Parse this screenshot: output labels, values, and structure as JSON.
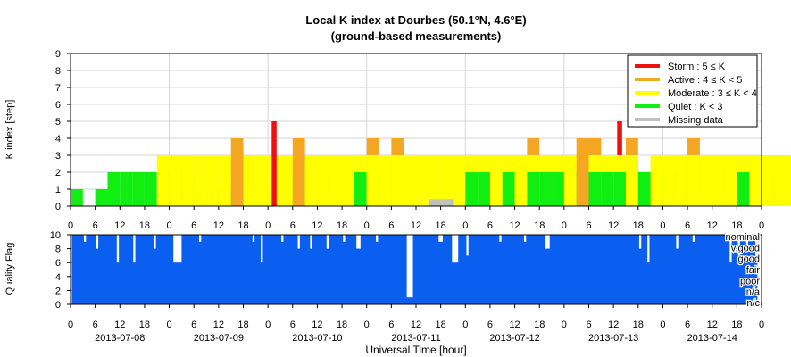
{
  "chart_data": {
    "type": "bar",
    "title": "Local K index at Dourbes (50.1°N, 4.6°E)",
    "subtitle": "(ground-based measurements)",
    "xlabel": "Universal Time [hour]",
    "x_unit": "hour",
    "days": [
      "2013-07-08",
      "2013-07-09",
      "2013-07-10",
      "2013-07-11",
      "2013-07-12",
      "2013-07-13",
      "2013-07-14"
    ],
    "k_panel": {
      "ylabel": "K index [step]",
      "ylim": [
        0,
        9
      ],
      "yticks": [
        0,
        1,
        2,
        3,
        4,
        5,
        6,
        7,
        8,
        9
      ],
      "grid": true,
      "bin_hours": 3,
      "k_values": [
        [
          1,
          0,
          1,
          2,
          2,
          2,
          2,
          3,
          2,
          2,
          1,
          1,
          0,
          1,
          0,
          1,
          1,
          2,
          2,
          2,
          2,
          3,
          3,
          3
        ],
        [
          3,
          3,
          3,
          3,
          3,
          4,
          3,
          3,
          3,
          3,
          3,
          3,
          2,
          3,
          3,
          3,
          4,
          3,
          3,
          3,
          3,
          3,
          3,
          3
        ],
        [
          5,
          3,
          4,
          3,
          3,
          3,
          3,
          2,
          3,
          3,
          4,
          3,
          3,
          3,
          3,
          3,
          3,
          3,
          3,
          3,
          3,
          4,
          3,
          3
        ],
        [
          3,
          3,
          3,
          3,
          0,
          -1,
          -1,
          0,
          3,
          3,
          3,
          3,
          3,
          3,
          3,
          3,
          3,
          3,
          4,
          3,
          5,
          4,
          1,
          2
        ],
        [
          2,
          2,
          3,
          2,
          3,
          2,
          2,
          2,
          2,
          2,
          3,
          2,
          3,
          3,
          2,
          2,
          3,
          3,
          4,
          3,
          3,
          3,
          2,
          3
        ],
        [
          3,
          4,
          2,
          1,
          2,
          3,
          2,
          3,
          3,
          2,
          2,
          3,
          2,
          2,
          3,
          2,
          3,
          2,
          3,
          3,
          2,
          3,
          3,
          3
        ],
        [
          3,
          3,
          3,
          3,
          3,
          3,
          2,
          3,
          3,
          3,
          3,
          3,
          3,
          3,
          3,
          4,
          3,
          3,
          3,
          4,
          4,
          3,
          4,
          4
        ]
      ],
      "legend": {
        "placement": "top-right",
        "entries": [
          {
            "label": "Storm : 5 ≤ K",
            "color": "#ee1111"
          },
          {
            "label": "Active : 4 ≤ K < 5",
            "color": "#f5a623"
          },
          {
            "label": "Moderate : 3 ≤ K < 4",
            "color": "#ffff00"
          },
          {
            "label": "Quiet : K < 3",
            "color": "#11ee11"
          },
          {
            "label": "Missing data",
            "color": "#c0c0c0"
          }
        ]
      }
    },
    "quality_panel": {
      "ylabel": "Quality Flag",
      "ylim": [
        0,
        10
      ],
      "yticks": [
        0,
        2,
        4,
        6,
        8,
        10
      ],
      "color": "#0a5ff0",
      "categories": [
        "nominal",
        "v.good",
        "good",
        "fair",
        "poor",
        "n/a",
        "n/c"
      ],
      "note": "Quality flag mostly 10 (nominal) with occasional drops; deep drop near 2013-07-11 09-12 UT.",
      "dips": [
        {
          "day": 0,
          "start_hour": 3,
          "end_hour": 4,
          "value": 9
        },
        {
          "day": 0,
          "start_hour": 6,
          "end_hour": 7,
          "value": 8
        },
        {
          "day": 0,
          "start_hour": 11,
          "end_hour": 12,
          "value": 6
        },
        {
          "day": 0,
          "start_hour": 15,
          "end_hour": 16,
          "value": 6
        },
        {
          "day": 0,
          "start_hour": 20,
          "end_hour": 21,
          "value": 8
        },
        {
          "day": 1,
          "start_hour": 0,
          "end_hour": 4,
          "value": 6
        },
        {
          "day": 1,
          "start_hour": 7,
          "end_hour": 8,
          "value": 9
        },
        {
          "day": 1,
          "start_hour": 20,
          "end_hour": 21,
          "value": 9
        },
        {
          "day": 1,
          "start_hour": 22,
          "end_hour": 23,
          "value": 6
        },
        {
          "day": 2,
          "start_hour": 3,
          "end_hour": 4,
          "value": 9
        },
        {
          "day": 2,
          "start_hour": 7,
          "end_hour": 8,
          "value": 8
        },
        {
          "day": 2,
          "start_hour": 10,
          "end_hour": 11,
          "value": 8
        },
        {
          "day": 2,
          "start_hour": 14,
          "end_hour": 15,
          "value": 8
        },
        {
          "day": 2,
          "start_hour": 18,
          "end_hour": 19,
          "value": 9
        },
        {
          "day": 2,
          "start_hour": 21,
          "end_hour": 23,
          "value": 8
        },
        {
          "day": 3,
          "start_hour": 2,
          "end_hour": 3,
          "value": 9
        },
        {
          "day": 3,
          "start_hour": 9,
          "end_hour": 12,
          "value": 1
        },
        {
          "day": 3,
          "start_hour": 17,
          "end_hour": 19,
          "value": 9
        },
        {
          "day": 3,
          "start_hour": 20,
          "end_hour": 23,
          "value": 6
        },
        {
          "day": 4,
          "start_hour": 0,
          "end_hour": 1,
          "value": 7
        },
        {
          "day": 4,
          "start_hour": 8,
          "end_hour": 9,
          "value": 9
        },
        {
          "day": 4,
          "start_hour": 14,
          "end_hour": 15,
          "value": 9
        },
        {
          "day": 4,
          "start_hour": 19,
          "end_hour": 21,
          "value": 8
        },
        {
          "day": 5,
          "start_hour": 18,
          "end_hour": 19,
          "value": 8
        },
        {
          "day": 5,
          "start_hour": 20,
          "end_hour": 21,
          "value": 6
        },
        {
          "day": 6,
          "start_hour": 3,
          "end_hour": 4,
          "value": 8
        },
        {
          "day": 6,
          "start_hour": 7,
          "end_hour": 8,
          "value": 9
        },
        {
          "day": 6,
          "start_hour": 16,
          "end_hour": 17,
          "value": 6
        },
        {
          "day": 6,
          "start_hour": 18,
          "end_hour": 19,
          "value": 7
        },
        {
          "day": 6,
          "start_hour": 20,
          "end_hour": 21,
          "value": 8
        },
        {
          "day": 6,
          "start_hour": 22,
          "end_hour": 24,
          "value": 7
        }
      ]
    },
    "hour_ticks": [
      0,
      6,
      12,
      18
    ]
  }
}
